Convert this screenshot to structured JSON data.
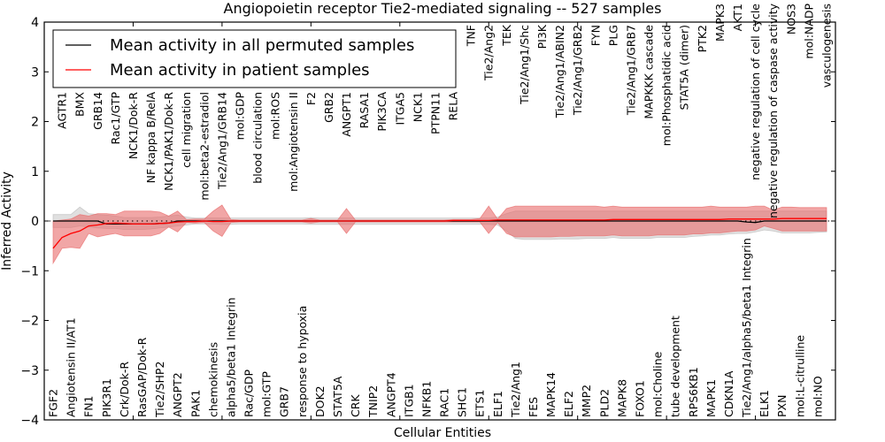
{
  "chart_data": {
    "type": "line",
    "title": "Angiopoietin receptor Tie2-mediated signaling -- 527 samples",
    "xlabel": "Cellular Entities",
    "ylabel": "Inferred Activity",
    "ylim": [
      -4,
      4
    ],
    "yticks": [
      "4",
      "3",
      "2",
      "1",
      "0",
      "−1",
      "−2",
      "−3",
      "−4"
    ],
    "ytick_values": [
      4,
      3,
      2,
      1,
      0,
      -1,
      -2,
      -3,
      -4
    ],
    "legend_position": "top-left",
    "categories": [
      "FGF2",
      "AGTR1",
      "Angiotensin II/AT1",
      "BMX",
      "FN1",
      "GRB14",
      "PIK3R1",
      "Rac1/GTP",
      "Crk/Dok-R",
      "NCK1/Dok-R",
      "RasGAP/Dok-R",
      "NF kappa B/RelA",
      "Tie2/SHP2",
      "NCK1/PAK1/Dok-R",
      "ANGPT2",
      "cell migration",
      "PAK1",
      "mol:beta2-estradiol",
      "chemokinesis",
      "Tie2/Ang1/GRB14",
      "alpha5/beta1 Integrin",
      "mol:GDP",
      "Rac/GDP",
      "blood circulation",
      "mol:GTP",
      "mol:ROS",
      "GRB7",
      "mol:Angiotensin II",
      "response to hypoxia",
      "F2",
      "DOK2",
      "GRB2",
      "STAT5A",
      "ANGPT1",
      "CRK",
      "RASA1",
      "TNIP2",
      "PIK3CA",
      "ANGPT4",
      "ITGA5",
      "ITGB1",
      "NCK1",
      "NFKB1",
      "PTPN11",
      "RAC1",
      "RELA",
      "SHC1",
      "TNF",
      "ETS1",
      "Tie2/Ang2",
      "ELF1",
      "TEK",
      "Tie2/Ang1",
      "Tie2/Ang1/Shc",
      "FES",
      "PI3K",
      "MAPK14",
      "Tie2/Ang1/ABIN2",
      "ELF2",
      "Tie2/Ang1/GRB2",
      "MMP2",
      "FYN",
      "PLD2",
      "PLG",
      "MAPK8",
      "Tie2/Ang1/GRB7",
      "FOXO1",
      "MAPKKK cascade",
      "mol:Choline",
      "mol:Phosphatidic acid",
      "tube development",
      "STAT5A (dimer)",
      "RPS6KB1",
      "PTK2",
      "MAPK1",
      "MAPK3",
      "CDKN1A",
      "AKT1",
      "Tie2/Ang1/alpha5/beta1 Integrin",
      "negative regulation of cell cycle",
      "ELK1",
      "negative regulation of caspase activity",
      "PXN",
      "NOS3",
      "mol:L-citrulline",
      "mol:NADP",
      "mol:NO",
      "vasculogenesis"
    ],
    "series": [
      {
        "name": "Mean activity in all permuted samples",
        "color": "#000000",
        "values": [
          0,
          0,
          0,
          0,
          0,
          0,
          -0.06,
          -0.06,
          -0.06,
          -0.06,
          -0.06,
          -0.06,
          -0.05,
          -0.04,
          0,
          0,
          0,
          0,
          0,
          0,
          0,
          0,
          0,
          0,
          0,
          0,
          0,
          0,
          0,
          0,
          0,
          0,
          0,
          0,
          0,
          0,
          0,
          0,
          0,
          0,
          0,
          0,
          0,
          0,
          0,
          0,
          0,
          0,
          0,
          0,
          0,
          0,
          0,
          0,
          0,
          0,
          0,
          0,
          0,
          0,
          0,
          0,
          0,
          0,
          0,
          0,
          0,
          0,
          0,
          0,
          0,
          0,
          0,
          0,
          0,
          0,
          0,
          0,
          -0.02,
          -0.03,
          0,
          0,
          0,
          0,
          0,
          0,
          0,
          0
        ],
        "band_low": [
          -0.13,
          -0.13,
          -0.13,
          -0.1,
          -0.12,
          -0.14,
          -0.15,
          -0.15,
          -0.17,
          -0.17,
          -0.17,
          -0.16,
          -0.14,
          -0.12,
          -0.1,
          -0.08,
          -0.06,
          -0.06,
          -0.06,
          -0.07,
          -0.07,
          -0.06,
          -0.06,
          -0.06,
          -0.06,
          -0.06,
          -0.06,
          -0.06,
          -0.06,
          -0.07,
          -0.07,
          -0.07,
          -0.07,
          -0.07,
          -0.07,
          -0.07,
          -0.07,
          -0.07,
          -0.07,
          -0.07,
          -0.07,
          -0.07,
          -0.07,
          -0.07,
          -0.07,
          -0.07,
          -0.07,
          -0.07,
          -0.07,
          -0.07,
          -0.08,
          -0.2,
          -0.35,
          -0.37,
          -0.37,
          -0.37,
          -0.37,
          -0.36,
          -0.36,
          -0.36,
          -0.35,
          -0.35,
          -0.35,
          -0.33,
          -0.35,
          -0.35,
          -0.35,
          -0.35,
          -0.33,
          -0.33,
          -0.33,
          -0.33,
          -0.31,
          -0.3,
          -0.28,
          -0.28,
          -0.26,
          -0.25,
          -0.25,
          -0.22,
          -0.18,
          -0.2,
          -0.24,
          -0.24,
          -0.24,
          -0.24,
          -0.23,
          -0.22
        ],
        "band_high": [
          0.13,
          0.13,
          0.13,
          0.28,
          0.15,
          0.13,
          0.12,
          0.1,
          0.07,
          0.07,
          0.07,
          0.07,
          0.08,
          0.1,
          0.12,
          0.08,
          0.06,
          0.06,
          0.06,
          0.06,
          0.06,
          0.06,
          0.06,
          0.06,
          0.06,
          0.06,
          0.06,
          0.06,
          0.06,
          0.07,
          0.06,
          0.06,
          0.06,
          0.06,
          0.06,
          0.06,
          0.06,
          0.06,
          0.06,
          0.06,
          0.06,
          0.06,
          0.06,
          0.06,
          0.06,
          0.06,
          0.06,
          0.06,
          0.06,
          0.06,
          0.08,
          0.15,
          0.2,
          0.2,
          0.2,
          0.2,
          0.2,
          0.2,
          0.2,
          0.2,
          0.2,
          0.2,
          0.2,
          0.2,
          0.2,
          0.2,
          0.2,
          0.2,
          0.2,
          0.2,
          0.2,
          0.2,
          0.2,
          0.2,
          0.2,
          0.2,
          0.2,
          0.2,
          0.2,
          0.2,
          0.2,
          0.2,
          0.2,
          0.2,
          0.2,
          0.2,
          0.2,
          0.2
        ],
        "band_color": "#bbbbbb"
      },
      {
        "name": "Mean activity in patient samples",
        "color": "#ff0000",
        "values": [
          -0.55,
          -0.33,
          -0.25,
          -0.2,
          -0.1,
          -0.08,
          -0.05,
          -0.04,
          -0.05,
          -0.06,
          -0.06,
          -0.06,
          -0.05,
          -0.04,
          -0.02,
          -0.01,
          -0.01,
          0,
          -0.01,
          -0.01,
          0,
          0,
          0,
          0,
          0,
          0,
          0,
          0,
          0,
          0,
          0,
          0,
          0,
          0,
          0,
          0,
          0,
          0,
          0,
          0,
          0,
          0,
          0,
          0,
          0,
          0.01,
          0.01,
          0.01,
          0.01,
          0.01,
          0.02,
          0.02,
          0.02,
          0.02,
          0.02,
          0.02,
          0.02,
          0.02,
          0.02,
          0.02,
          0.02,
          0.02,
          0.02,
          0.03,
          0.03,
          0.03,
          0.03,
          0.03,
          0.03,
          0.03,
          0.03,
          0.03,
          0.03,
          0.03,
          0.03,
          0.03,
          0.04,
          0.04,
          0.04,
          0.04,
          0.04,
          0.04,
          0.05,
          0.05,
          0.05,
          0.05,
          0.05,
          0.05
        ],
        "band_low": [
          -0.85,
          -0.55,
          -0.53,
          -0.55,
          -0.25,
          -0.32,
          -0.28,
          -0.25,
          -0.3,
          -0.3,
          -0.3,
          -0.3,
          -0.25,
          -0.12,
          -0.22,
          -0.03,
          -0.04,
          -0.03,
          -0.2,
          -0.31,
          -0.03,
          -0.02,
          -0.02,
          -0.02,
          -0.02,
          -0.02,
          -0.02,
          -0.02,
          -0.02,
          -0.04,
          -0.02,
          -0.02,
          -0.02,
          -0.25,
          -0.02,
          -0.02,
          -0.02,
          -0.02,
          -0.02,
          -0.02,
          -0.02,
          -0.02,
          -0.02,
          -0.02,
          -0.02,
          -0.02,
          -0.02,
          -0.02,
          -0.02,
          -0.25,
          -0.03,
          -0.25,
          -0.32,
          -0.32,
          -0.32,
          -0.32,
          -0.32,
          -0.31,
          -0.31,
          -0.3,
          -0.3,
          -0.3,
          -0.3,
          -0.28,
          -0.3,
          -0.3,
          -0.3,
          -0.3,
          -0.28,
          -0.28,
          -0.28,
          -0.28,
          -0.26,
          -0.26,
          -0.24,
          -0.24,
          -0.22,
          -0.2,
          -0.2,
          -0.18,
          -0.1,
          -0.15,
          -0.2,
          -0.2,
          -0.2,
          -0.2,
          -0.2,
          -0.2
        ],
        "band_high": [
          0,
          0.02,
          0.04,
          0.13,
          0.1,
          0.15,
          0.15,
          0.13,
          0.2,
          0.2,
          0.2,
          0.2,
          0.18,
          0.1,
          0.2,
          0.03,
          0.04,
          0.04,
          0.2,
          0.32,
          0.03,
          0.02,
          0.02,
          0.02,
          0.02,
          0.02,
          0.02,
          0.02,
          0.02,
          0.05,
          0.02,
          0.02,
          0.02,
          0.25,
          0.02,
          0.02,
          0.02,
          0.02,
          0.02,
          0.02,
          0.02,
          0.02,
          0.02,
          0.02,
          0.02,
          0.03,
          0.03,
          0.03,
          0.05,
          0.3,
          0.04,
          0.25,
          0.3,
          0.3,
          0.3,
          0.3,
          0.3,
          0.3,
          0.3,
          0.3,
          0.3,
          0.3,
          0.28,
          0.3,
          0.28,
          0.28,
          0.28,
          0.28,
          0.28,
          0.28,
          0.28,
          0.28,
          0.28,
          0.28,
          0.3,
          0.28,
          0.28,
          0.28,
          0.28,
          0.3,
          0.3,
          0.22,
          0.28,
          0.28,
          0.27,
          0.27,
          0.27,
          0.27
        ],
        "band_color": "#e86a6a"
      }
    ]
  }
}
